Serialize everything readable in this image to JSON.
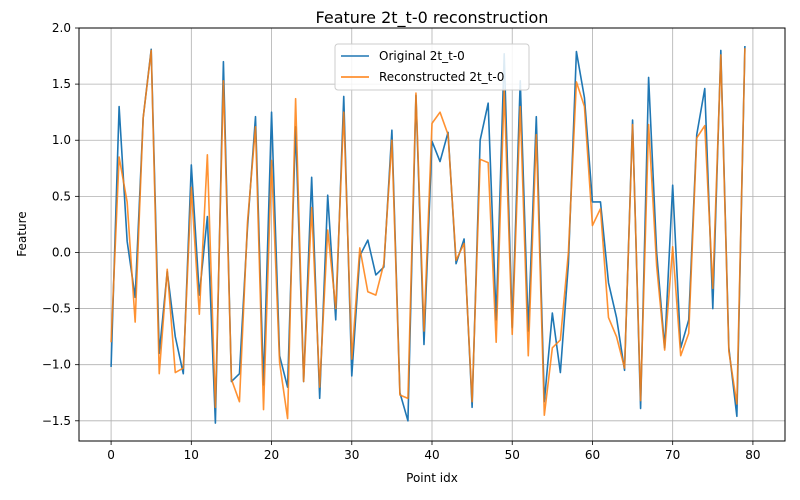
{
  "chart_data": {
    "type": "line",
    "title": "Feature 2t_t-0 reconstruction",
    "xlabel": "Point idx",
    "ylabel": "Feature",
    "xlim": [
      -4,
      84
    ],
    "ylim": [
      -1.68,
      2.0
    ],
    "xticks": [
      0,
      10,
      20,
      30,
      40,
      50,
      60,
      70,
      80
    ],
    "yticks": [
      -1.5,
      -1.0,
      -0.5,
      0.0,
      0.5,
      1.0,
      1.5,
      2.0
    ],
    "xtick_labels": [
      "0",
      "10",
      "20",
      "30",
      "40",
      "50",
      "60",
      "70",
      "80"
    ],
    "ytick_labels": [
      "−1.5",
      "−1.0",
      "−0.5",
      "0.0",
      "0.5",
      "1.0",
      "1.5",
      "2.0"
    ],
    "grid": true,
    "legend_position": "top-center",
    "series": [
      {
        "name": "Original 2t_t-0",
        "color": "#1f77b4",
        "values": [
          -1.02,
          1.3,
          0.1,
          -0.4,
          1.2,
          1.81,
          -0.9,
          -0.17,
          -0.75,
          -1.08,
          0.78,
          -0.38,
          0.32,
          -1.52,
          1.7,
          -1.15,
          -1.08,
          0.22,
          1.21,
          -1.18,
          1.25,
          -0.92,
          -1.2,
          1.12,
          -1.15,
          0.67,
          -1.3,
          0.51,
          -0.6,
          1.39,
          -1.1,
          -0.03,
          0.11,
          -0.2,
          -0.13,
          1.09,
          -1.25,
          -1.5,
          1.4,
          -0.82,
          0.99,
          0.81,
          1.07,
          -0.1,
          0.12,
          -1.38,
          1.0,
          1.33,
          -0.6,
          1.77,
          -0.67,
          1.53,
          -0.7,
          1.21,
          -1.33,
          -0.54,
          -1.07,
          -0.1,
          1.79,
          1.38,
          0.45,
          0.45,
          -0.27,
          -0.58,
          -1.05,
          1.18,
          -1.39,
          1.56,
          0.0,
          -0.85,
          0.6,
          -0.85,
          -0.6,
          1.05,
          1.46,
          -0.5,
          1.8,
          -0.85,
          -1.46,
          1.84
        ]
      },
      {
        "name": "Reconstructed 2t_t-0",
        "color": "#ff7f0e",
        "values": [
          -0.8,
          0.85,
          0.45,
          -0.62,
          1.2,
          1.8,
          -1.08,
          -0.15,
          -1.07,
          -1.03,
          0.58,
          -0.55,
          0.87,
          -1.38,
          1.53,
          -1.13,
          -1.33,
          0.27,
          1.12,
          -1.4,
          0.82,
          -0.98,
          -1.48,
          1.37,
          -1.15,
          0.4,
          -1.2,
          0.2,
          -0.5,
          1.25,
          -0.95,
          0.04,
          -0.35,
          -0.38,
          -0.1,
          1.0,
          -1.27,
          -1.3,
          1.42,
          -0.7,
          1.15,
          1.25,
          1.05,
          -0.07,
          0.08,
          -1.33,
          0.83,
          0.8,
          -0.8,
          1.45,
          -0.73,
          1.3,
          -0.92,
          1.05,
          -1.45,
          -0.85,
          -0.78,
          0.0,
          1.52,
          1.3,
          0.24,
          0.39,
          -0.58,
          -0.75,
          -1.03,
          1.14,
          -1.32,
          1.14,
          -0.12,
          -0.87,
          0.05,
          -0.92,
          -0.72,
          1.02,
          1.13,
          -0.32,
          1.76,
          -0.88,
          -1.35,
          1.82
        ]
      }
    ]
  }
}
